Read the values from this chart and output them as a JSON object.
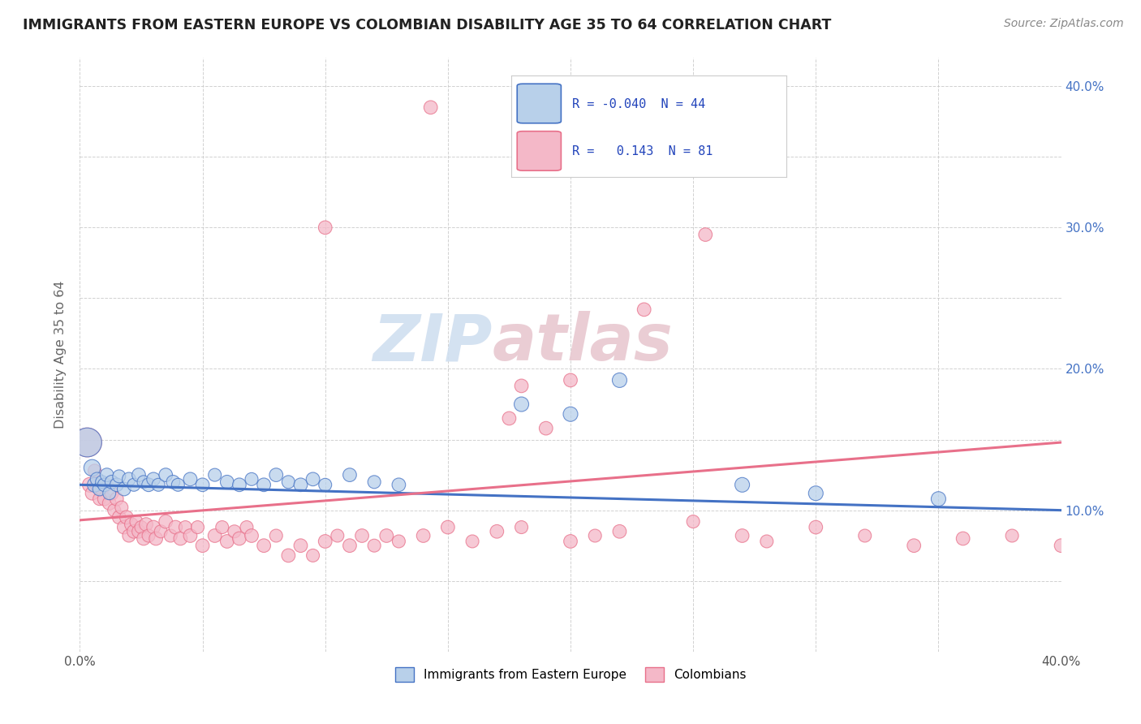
{
  "title": "IMMIGRANTS FROM EASTERN EUROPE VS COLOMBIAN DISABILITY AGE 35 TO 64 CORRELATION CHART",
  "source": "Source: ZipAtlas.com",
  "ylabel": "Disability Age 35 to 64",
  "xlim": [
    0.0,
    0.4
  ],
  "ylim": [
    0.0,
    0.42
  ],
  "blue_R": "-0.040",
  "blue_N": "44",
  "pink_R": "0.143",
  "pink_N": "81",
  "blue_color": "#b8d0ea",
  "pink_color": "#f4b8c8",
  "blue_line_color": "#4472c4",
  "pink_line_color": "#e8708a",
  "legend_label_blue": "Immigrants from Eastern Europe",
  "legend_label_pink": "Colombians",
  "watermark_zip": "ZIP",
  "watermark_atlas": "atlas",
  "blue_line_x": [
    0.0,
    0.4
  ],
  "blue_line_y": [
    0.118,
    0.1
  ],
  "pink_line_x": [
    0.0,
    0.4
  ],
  "pink_line_y": [
    0.093,
    0.148
  ],
  "blue_points": [
    [
      0.003,
      0.148,
      55
    ],
    [
      0.005,
      0.13,
      18
    ],
    [
      0.006,
      0.118,
      14
    ],
    [
      0.007,
      0.122,
      12
    ],
    [
      0.008,
      0.115,
      12
    ],
    [
      0.009,
      0.12,
      11
    ],
    [
      0.01,
      0.118,
      12
    ],
    [
      0.011,
      0.125,
      12
    ],
    [
      0.012,
      0.112,
      11
    ],
    [
      0.013,
      0.12,
      12
    ],
    [
      0.015,
      0.118,
      12
    ],
    [
      0.016,
      0.124,
      11
    ],
    [
      0.018,
      0.115,
      12
    ],
    [
      0.02,
      0.122,
      12
    ],
    [
      0.022,
      0.118,
      11
    ],
    [
      0.024,
      0.125,
      12
    ],
    [
      0.026,
      0.12,
      11
    ],
    [
      0.028,
      0.118,
      12
    ],
    [
      0.03,
      0.122,
      12
    ],
    [
      0.032,
      0.118,
      11
    ],
    [
      0.035,
      0.125,
      12
    ],
    [
      0.038,
      0.12,
      12
    ],
    [
      0.04,
      0.118,
      11
    ],
    [
      0.045,
      0.122,
      12
    ],
    [
      0.05,
      0.118,
      12
    ],
    [
      0.055,
      0.125,
      11
    ],
    [
      0.06,
      0.12,
      12
    ],
    [
      0.065,
      0.118,
      12
    ],
    [
      0.07,
      0.122,
      11
    ],
    [
      0.075,
      0.118,
      12
    ],
    [
      0.08,
      0.125,
      12
    ],
    [
      0.085,
      0.12,
      11
    ],
    [
      0.09,
      0.118,
      12
    ],
    [
      0.095,
      0.122,
      12
    ],
    [
      0.1,
      0.118,
      11
    ],
    [
      0.11,
      0.125,
      12
    ],
    [
      0.12,
      0.12,
      11
    ],
    [
      0.13,
      0.118,
      12
    ],
    [
      0.18,
      0.175,
      14
    ],
    [
      0.2,
      0.168,
      14
    ],
    [
      0.22,
      0.192,
      14
    ],
    [
      0.27,
      0.118,
      14
    ],
    [
      0.3,
      0.112,
      14
    ],
    [
      0.35,
      0.108,
      14
    ]
  ],
  "pink_points": [
    [
      0.003,
      0.148,
      55
    ],
    [
      0.004,
      0.118,
      14
    ],
    [
      0.005,
      0.112,
      12
    ],
    [
      0.006,
      0.128,
      11
    ],
    [
      0.007,
      0.118,
      12
    ],
    [
      0.008,
      0.108,
      11
    ],
    [
      0.009,
      0.115,
      12
    ],
    [
      0.01,
      0.108,
      12
    ],
    [
      0.011,
      0.118,
      11
    ],
    [
      0.012,
      0.105,
      12
    ],
    [
      0.013,
      0.112,
      12
    ],
    [
      0.014,
      0.1,
      11
    ],
    [
      0.015,
      0.108,
      12
    ],
    [
      0.016,
      0.095,
      12
    ],
    [
      0.017,
      0.102,
      11
    ],
    [
      0.018,
      0.088,
      12
    ],
    [
      0.019,
      0.095,
      12
    ],
    [
      0.02,
      0.082,
      11
    ],
    [
      0.021,
      0.09,
      12
    ],
    [
      0.022,
      0.085,
      12
    ],
    [
      0.023,
      0.092,
      11
    ],
    [
      0.024,
      0.085,
      12
    ],
    [
      0.025,
      0.088,
      11
    ],
    [
      0.026,
      0.08,
      12
    ],
    [
      0.027,
      0.09,
      12
    ],
    [
      0.028,
      0.082,
      11
    ],
    [
      0.03,
      0.088,
      12
    ],
    [
      0.031,
      0.08,
      12
    ],
    [
      0.033,
      0.085,
      11
    ],
    [
      0.035,
      0.092,
      12
    ],
    [
      0.037,
      0.082,
      11
    ],
    [
      0.039,
      0.088,
      12
    ],
    [
      0.041,
      0.08,
      12
    ],
    [
      0.043,
      0.088,
      11
    ],
    [
      0.045,
      0.082,
      12
    ],
    [
      0.048,
      0.088,
      11
    ],
    [
      0.05,
      0.075,
      12
    ],
    [
      0.055,
      0.082,
      12
    ],
    [
      0.058,
      0.088,
      11
    ],
    [
      0.06,
      0.078,
      12
    ],
    [
      0.063,
      0.085,
      11
    ],
    [
      0.065,
      0.08,
      12
    ],
    [
      0.068,
      0.088,
      11
    ],
    [
      0.07,
      0.082,
      12
    ],
    [
      0.075,
      0.075,
      12
    ],
    [
      0.08,
      0.082,
      11
    ],
    [
      0.085,
      0.068,
      12
    ],
    [
      0.09,
      0.075,
      12
    ],
    [
      0.095,
      0.068,
      11
    ],
    [
      0.1,
      0.078,
      12
    ],
    [
      0.105,
      0.082,
      11
    ],
    [
      0.11,
      0.075,
      12
    ],
    [
      0.115,
      0.082,
      12
    ],
    [
      0.12,
      0.075,
      11
    ],
    [
      0.125,
      0.082,
      12
    ],
    [
      0.13,
      0.078,
      11
    ],
    [
      0.14,
      0.082,
      12
    ],
    [
      0.15,
      0.088,
      12
    ],
    [
      0.16,
      0.078,
      11
    ],
    [
      0.17,
      0.085,
      12
    ],
    [
      0.175,
      0.165,
      12
    ],
    [
      0.18,
      0.088,
      11
    ],
    [
      0.19,
      0.158,
      12
    ],
    [
      0.2,
      0.078,
      12
    ],
    [
      0.21,
      0.082,
      11
    ],
    [
      0.22,
      0.085,
      12
    ],
    [
      0.25,
      0.092,
      11
    ],
    [
      0.255,
      0.295,
      12
    ],
    [
      0.27,
      0.082,
      12
    ],
    [
      0.28,
      0.078,
      11
    ],
    [
      0.3,
      0.088,
      12
    ],
    [
      0.32,
      0.082,
      11
    ],
    [
      0.34,
      0.075,
      12
    ],
    [
      0.36,
      0.08,
      12
    ],
    [
      0.38,
      0.082,
      11
    ],
    [
      0.4,
      0.075,
      12
    ],
    [
      0.143,
      0.385,
      12
    ],
    [
      0.1,
      0.3,
      12
    ],
    [
      0.23,
      0.242,
      12
    ],
    [
      0.2,
      0.192,
      12
    ],
    [
      0.18,
      0.188,
      12
    ]
  ]
}
